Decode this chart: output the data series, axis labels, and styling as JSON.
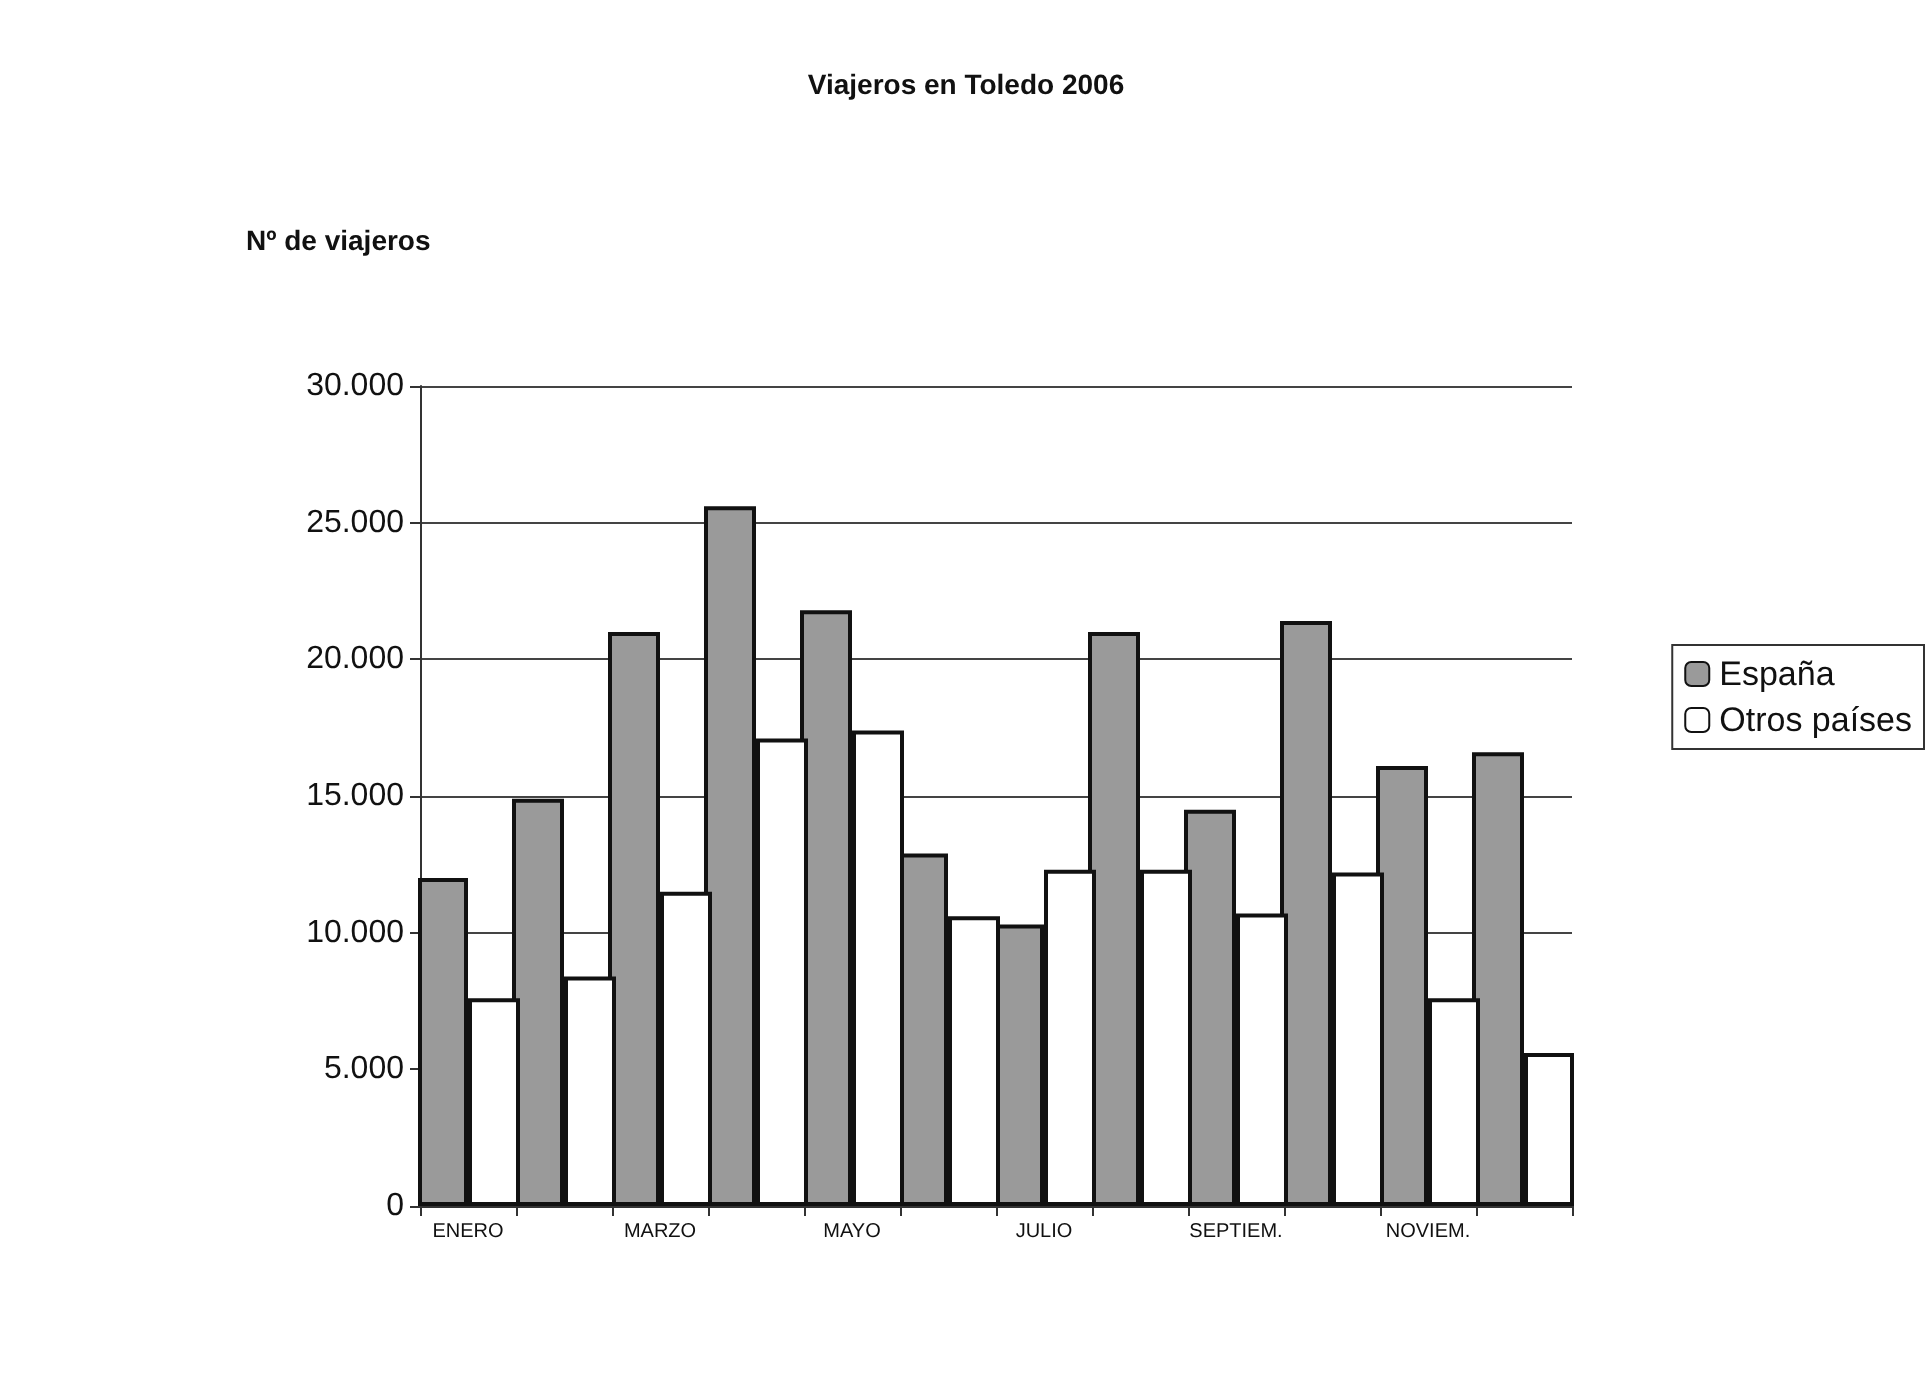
{
  "chart_data": {
    "type": "bar",
    "title": "Viajeros en Toledo 2006",
    "ylabel": "Nº de viajeros",
    "categories": [
      "ENERO",
      null,
      "MARZO",
      null,
      "MAYO",
      null,
      "JULIO",
      null,
      "SEPTIEM.",
      null,
      "NOVIEM.",
      null
    ],
    "series": [
      {
        "name": "España",
        "color": "#9a9a9a",
        "values": [
          12000,
          14900,
          21000,
          25600,
          21800,
          12900,
          10300,
          21000,
          14500,
          21400,
          16100,
          16600
        ]
      },
      {
        "name": "Otros países",
        "color": "#ffffff",
        "values": [
          7600,
          8400,
          11500,
          17100,
          17400,
          10600,
          12300,
          12300,
          10700,
          12200,
          7600,
          5600
        ]
      }
    ],
    "ylim": [
      0,
      30000
    ],
    "yticks": [
      {
        "value": 0,
        "label": "0"
      },
      {
        "value": 5000,
        "label": "5.000"
      },
      {
        "value": 10000,
        "label": "10.000"
      },
      {
        "value": 15000,
        "label": "15.000"
      },
      {
        "value": 20000,
        "label": "20.000"
      },
      {
        "value": 25000,
        "label": "25.000"
      },
      {
        "value": 30000,
        "label": "30.000"
      }
    ],
    "grid": "y",
    "legend": "right"
  }
}
